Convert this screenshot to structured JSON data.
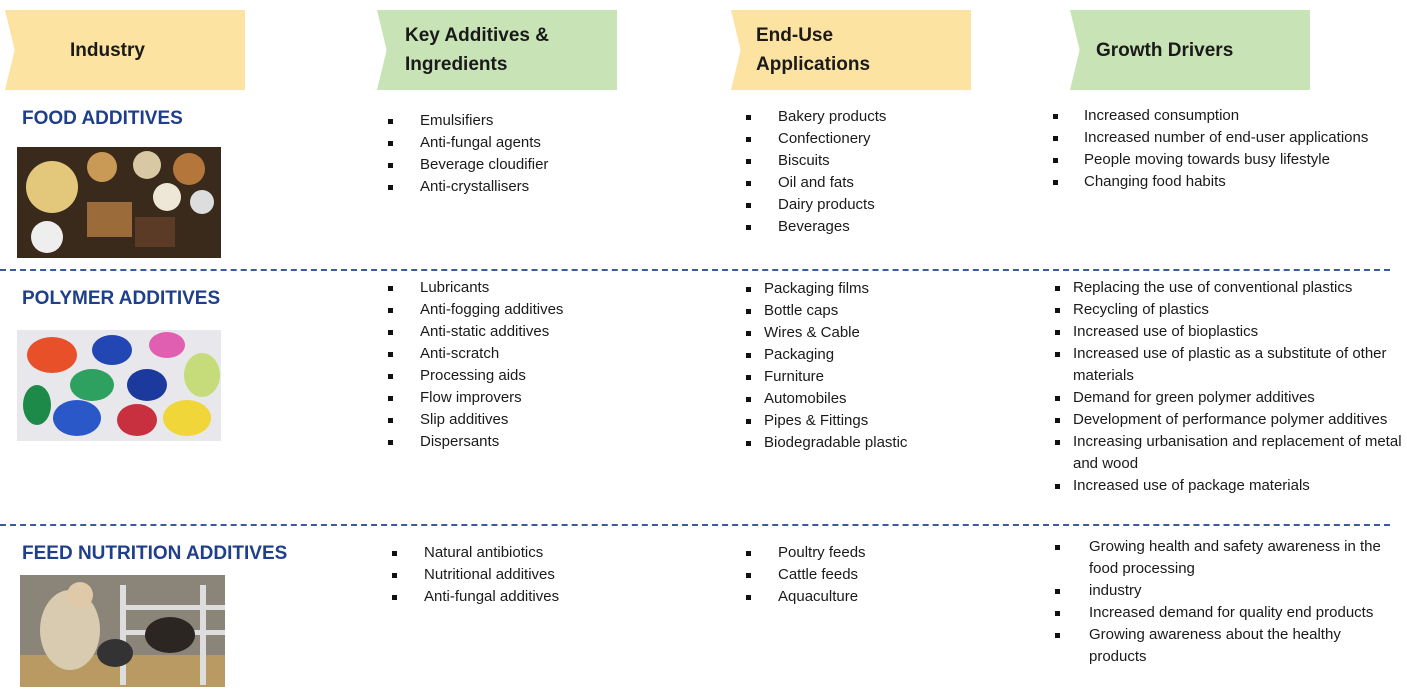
{
  "header": {
    "columns": [
      "Industry",
      "Key Additives & Ingredients",
      "End-Use Applications",
      "Growth Drivers"
    ]
  },
  "rows": [
    {
      "industry": "FOOD ADDITIVES",
      "additives": [
        "Emulsifiers",
        "Anti-fungal agents",
        "Beverage cloudifier",
        "Anti-crystallisers"
      ],
      "applications": [
        "Bakery products",
        "Confectionery",
        "Biscuits",
        "Oil and fats",
        "Dairy products",
        "Beverages"
      ],
      "drivers": [
        "Increased consumption",
        "Increased number of end-user applications",
        "People moving towards busy lifestyle",
        "Changing food habits"
      ]
    },
    {
      "industry": "POLYMER ADDITIVES",
      "additives": [
        "Lubricants",
        "Anti-fogging additives",
        "Anti-static additives",
        "Anti-scratch",
        "Processing aids",
        "Flow improvers",
        "Slip additives",
        "Dispersants"
      ],
      "applications": [
        "Packaging films",
        "Bottle caps",
        "Wires & Cable",
        "Packaging",
        "Furniture",
        "Automobiles",
        "Pipes & Fittings",
        "Biodegradable plastic"
      ],
      "drivers": [
        "Replacing the use of conventional plastics",
        "Recycling of plastics",
        "Increased use of bioplastics",
        "Increased use of plastic as a substitute of other materials",
        "Demand for green polymer additives",
        "Development of performance polymer additives",
        "Increasing urbanisation and replacement of metal and wood",
        "Increased use of package materials"
      ]
    },
    {
      "industry": "FEED NUTRITION ADDITIVES",
      "additives": [
        "Natural antibiotics",
        "Nutritional additives",
        "Anti-fungal additives"
      ],
      "applications": [
        "Poultry feeds",
        "Cattle feeds",
        "Aquaculture"
      ],
      "drivers": [
        "Growing health and safety awareness in the food processing",
        "industry",
        "Increased demand for quality end products",
        "Growing awareness about the healthy products"
      ]
    }
  ]
}
